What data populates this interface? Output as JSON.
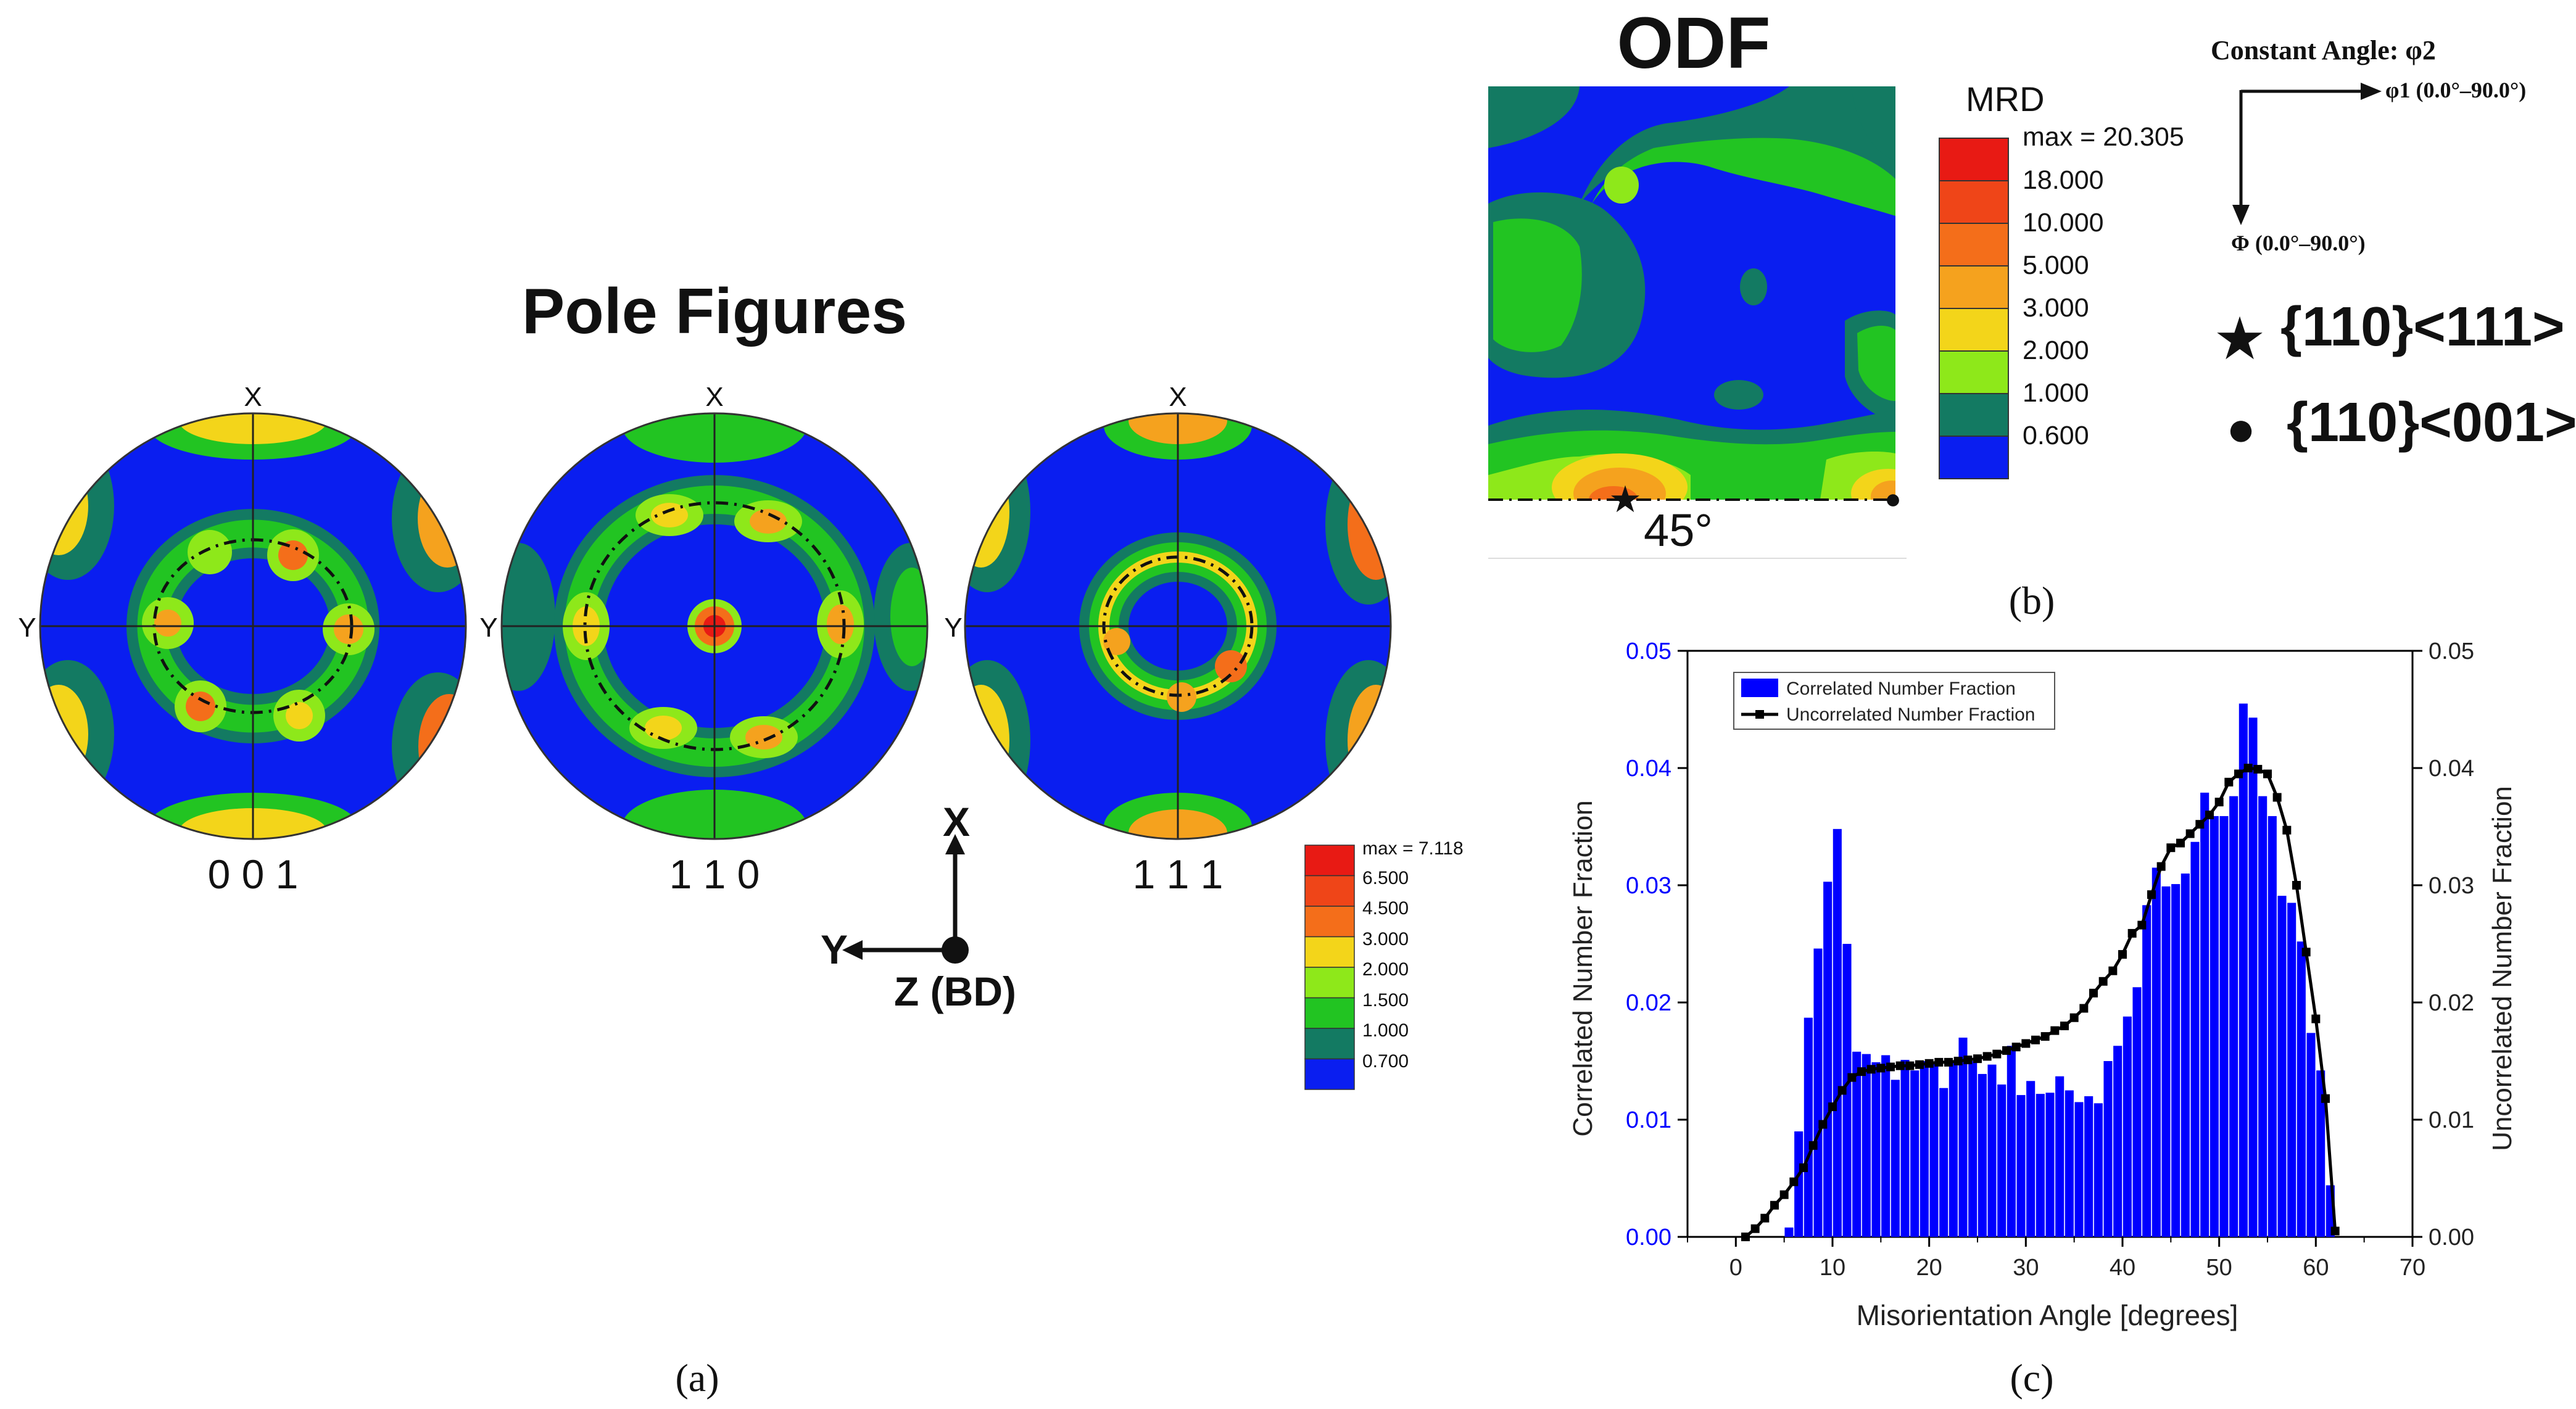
{
  "colors": {
    "blue": "#0a1ef0",
    "teal": "#137a62",
    "green": "#22c422",
    "lime": "#8ee81a",
    "yellow": "#f3d51a",
    "orange_light": "#f5a21e",
    "orange": "#f46e1a",
    "red_orange": "#ef4518",
    "red": "#e81a14",
    "bar": "#0000ff",
    "line": "#000000",
    "axis_left": "#0000ff"
  },
  "panel_a": {
    "title": "Pole Figures",
    "caption": "(a)",
    "pole_figures": [
      {
        "label": "0 0 1",
        "top": "X",
        "left": "Y"
      },
      {
        "label": "1 1 0",
        "top": "X",
        "left": "Y"
      },
      {
        "label": "1 1 1",
        "top": "X",
        "left": "Y"
      }
    ],
    "axes_triad": {
      "x": "X",
      "y": "Y",
      "z": "Z (BD)"
    },
    "legend": {
      "max_label": "max = 7.118",
      "levels": [
        "6.500",
        "4.500",
        "3.000",
        "2.000",
        "1.500",
        "1.000",
        "0.700"
      ]
    }
  },
  "panel_b": {
    "title": "ODF",
    "caption": "(b)",
    "angle_label": "45°",
    "legend": {
      "title": "MRD",
      "max_label": "max = 20.305",
      "levels": [
        "18.000",
        "10.000",
        "5.000",
        "3.000",
        "2.000",
        "1.000",
        "0.600"
      ]
    },
    "constant_angle": "Constant Angle: φ2",
    "phi1_axis": "φ1 (0.0°–90.0°)",
    "Phi_axis": "Φ (0.0°–90.0°)",
    "star_symbol": "★",
    "circle_symbol": "●",
    "star_texture": "{110}<111>",
    "circle_texture": "{110}<001>"
  },
  "panel_c": {
    "caption": "(c)",
    "chart_data": {
      "type": "bar",
      "title": "",
      "xlabel": "Misorientation Angle [degrees]",
      "ylabel": "Correlated Number Fraction",
      "ylabel_right": "Uncorrelated Number Fraction",
      "xlim": [
        -5,
        70
      ],
      "ylim": [
        0,
        0.05
      ],
      "x_ticks": [
        "0",
        "10",
        "20",
        "30",
        "40",
        "50",
        "60",
        "70"
      ],
      "y_ticks": [
        "0.00",
        "0.01",
        "0.02",
        "0.03",
        "0.04",
        "0.05"
      ],
      "y_ticks_right": [
        "0.00",
        "0.01",
        "0.02",
        "0.03",
        "0.04",
        "0.05"
      ],
      "legend": [
        "Correlated Number Fraction",
        "Uncorrelated Number Fraction"
      ],
      "series": [
        {
          "name": "Correlated Number Fraction",
          "kind": "bar",
          "x": [
            5.5,
            6.5,
            7.5,
            8.5,
            9.5,
            10.5,
            11.5,
            12.5,
            13.5,
            14.5,
            15.5,
            16.5,
            17.5,
            18.5,
            19.5,
            20.5,
            21.5,
            22.5,
            23.5,
            24.5,
            25.5,
            26.5,
            27.5,
            28.5,
            29.5,
            30.5,
            31.5,
            32.5,
            33.5,
            34.5,
            35.5,
            36.5,
            37.5,
            38.5,
            39.5,
            40.5,
            41.5,
            42.5,
            43.5,
            44.5,
            45.5,
            46.5,
            47.5,
            48.5,
            49.5,
            50.5,
            51.5,
            52.5,
            53.5,
            54.5,
            55.5,
            56.5,
            57.5,
            58.5,
            59.5,
            60.5,
            61.5,
            62.5
          ],
          "values": [
            0.0008,
            0.009,
            0.0187,
            0.0246,
            0.0303,
            0.0348,
            0.025,
            0.0158,
            0.0156,
            0.0149,
            0.0155,
            0.0134,
            0.0151,
            0.0142,
            0.015,
            0.0148,
            0.0127,
            0.0149,
            0.017,
            0.015,
            0.0139,
            0.0147,
            0.013,
            0.0163,
            0.0121,
            0.0133,
            0.0122,
            0.0123,
            0.0137,
            0.0125,
            0.0115,
            0.012,
            0.0114,
            0.015,
            0.0163,
            0.0188,
            0.0213,
            0.0283,
            0.0315,
            0.0299,
            0.0301,
            0.031,
            0.0337,
            0.0379,
            0.0359,
            0.0359,
            0.0376,
            0.0455,
            0.0443,
            0.0376,
            0.0359,
            0.0291,
            0.0285,
            0.0252,
            0.0174,
            0.0142,
            0.0044,
            0.0
          ]
        },
        {
          "name": "Uncorrelated Number Fraction",
          "kind": "line",
          "x": [
            1,
            2,
            3,
            4,
            5,
            6,
            7,
            8,
            9,
            10,
            11,
            12,
            13,
            14,
            15,
            16,
            17,
            18,
            19,
            20,
            21,
            22,
            23,
            24,
            25,
            26,
            27,
            28,
            29,
            30,
            31,
            32,
            33,
            34,
            35,
            36,
            37,
            38,
            39,
            40,
            41,
            42,
            43,
            44,
            45,
            46,
            47,
            48,
            49,
            50,
            51,
            52,
            53,
            54,
            55,
            56,
            57,
            58,
            59,
            60,
            61,
            62
          ],
          "values": [
            0.0,
            0.0007,
            0.0016,
            0.0027,
            0.0036,
            0.0047,
            0.0059,
            0.0078,
            0.0096,
            0.0111,
            0.0125,
            0.0136,
            0.0141,
            0.0143,
            0.0144,
            0.0145,
            0.0146,
            0.0146,
            0.0147,
            0.0148,
            0.0149,
            0.0149,
            0.015,
            0.0151,
            0.0152,
            0.0154,
            0.0156,
            0.0159,
            0.0162,
            0.0165,
            0.0168,
            0.0171,
            0.0176,
            0.018,
            0.0187,
            0.0195,
            0.0208,
            0.0218,
            0.0227,
            0.0241,
            0.0259,
            0.0266,
            0.0292,
            0.0316,
            0.0332,
            0.0336,
            0.0344,
            0.0352,
            0.036,
            0.0371,
            0.0388,
            0.0395,
            0.04,
            0.0399,
            0.0395,
            0.0375,
            0.0347,
            0.03,
            0.0243,
            0.0186,
            0.0118,
            0.0005
          ]
        }
      ]
    }
  }
}
